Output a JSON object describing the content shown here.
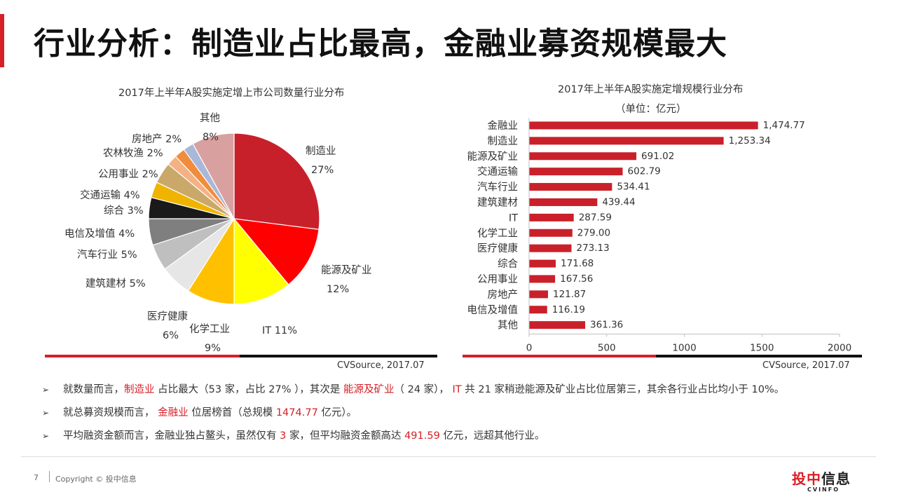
{
  "title": "行业分析：制造业占比最高，金融业募资规模最大",
  "pie_chart": {
    "title": "2017年上半年A股实施定增上市公司数量行业分布",
    "source": "CVSource, 2017.07"
  },
  "bar_chart": {
    "title": "2017年上半年A股实施定增规模行业分布",
    "subtitle": "（单位：亿元）",
    "source": "CVSource, 2017.07"
  },
  "colors": {
    "accent": "#d71f26",
    "bar": "#c9202a"
  },
  "chart_data": [
    {
      "type": "pie",
      "title": "2017年上半年A股实施定增上市公司数量行业分布",
      "slices": [
        {
          "name": "制造业",
          "value": 27,
          "label": "27%",
          "color": "#c8202a"
        },
        {
          "name": "能源及矿业",
          "value": 12,
          "label": "12%",
          "color": "#ff0000"
        },
        {
          "name": "IT",
          "value": 11,
          "label": "11%",
          "color": "#ffff00"
        },
        {
          "name": "化学工业",
          "value": 9,
          "label": "9%",
          "color": "#ffc000"
        },
        {
          "name": "医疗健康",
          "value": 6,
          "label": "6%",
          "color": "#e6e6e6"
        },
        {
          "name": "建筑建材",
          "value": 5,
          "label": "5%",
          "color": "#bfbfbf"
        },
        {
          "name": "汽车行业",
          "value": 5,
          "label": "5%",
          "color": "#7f7f7f"
        },
        {
          "name": "电信及增值",
          "value": 4,
          "label": "4%",
          "color": "#1a1a1a"
        },
        {
          "name": "综合",
          "value": 3,
          "label": "3%",
          "color": "#f0b400"
        },
        {
          "name": "交通运输",
          "value": 4,
          "label": "4%",
          "color": "#c9a86a"
        },
        {
          "name": "公用事业",
          "value": 2,
          "label": "2%",
          "color": "#f4b183"
        },
        {
          "name": "农林牧渔",
          "value": 2,
          "label": "2%",
          "color": "#f08c3c"
        },
        {
          "name": "房地产",
          "value": 2,
          "label": "2%",
          "color": "#a9b8d9"
        },
        {
          "name": "其他",
          "value": 8,
          "label": "8%",
          "color": "#d9a0a0"
        }
      ]
    },
    {
      "type": "bar",
      "orientation": "horizontal",
      "title": "2017年上半年A股实施定增规模行业分布",
      "subtitle": "（单位：亿元）",
      "categories": [
        "金融业",
        "制造业",
        "能源及矿业",
        "交通运输",
        "汽车行业",
        "建筑建材",
        "IT",
        "化学工业",
        "医疗健康",
        "综合",
        "公用事业",
        "房地产",
        "电信及增值",
        "其他"
      ],
      "values": [
        1474.77,
        1253.34,
        691.02,
        602.79,
        534.41,
        439.44,
        287.59,
        279.0,
        273.13,
        171.68,
        167.56,
        121.87,
        116.19,
        361.36
      ],
      "value_labels": [
        "1,474.77",
        "1,253.34",
        "691.02",
        "602.79",
        "534.41",
        "439.44",
        "287.59",
        "279.00",
        "273.13",
        "171.68",
        "167.56",
        "121.87",
        "116.19",
        "361.36"
      ],
      "xlim": [
        0,
        2000
      ],
      "xticks": [
        0,
        500,
        1000,
        1500,
        2000
      ]
    }
  ],
  "bullets": [
    {
      "parts": [
        {
          "text": "就数量而言，"
        },
        {
          "text": "制造业",
          "hl": true
        },
        {
          "text": " 占比最大（53 家，占比 27% ），其次是 "
        },
        {
          "text": "能源及矿业",
          "hl": true
        },
        {
          "text": "（ 24 家）， "
        },
        {
          "text": "IT",
          "hl": true
        },
        {
          "text": " 共 21 家稍逊能源及矿业占比位居第三，其余各行业占比均小于 10%。"
        }
      ]
    },
    {
      "parts": [
        {
          "text": "就总募资规模而言， "
        },
        {
          "text": "金融业",
          "hl": true
        },
        {
          "text": " 位居榜首（总规模 "
        },
        {
          "text": "1474.77",
          "hl": true
        },
        {
          "text": " 亿元）。"
        }
      ]
    },
    {
      "parts": [
        {
          "text": "平均融资金额而言，金融业独占鳌头，虽然仅有 "
        },
        {
          "text": "3",
          "hl": true
        },
        {
          "text": " 家，但平均融资金额高达 "
        },
        {
          "text": "491.59",
          "hl": true
        },
        {
          "text": " 亿元，远超其他行业。"
        }
      ]
    }
  ],
  "footer": {
    "page": "7",
    "copyright": "Copyright © 投中信息"
  },
  "logo": {
    "text_red": "投中",
    "text_dark": "信息",
    "sub": "CVINFO"
  }
}
